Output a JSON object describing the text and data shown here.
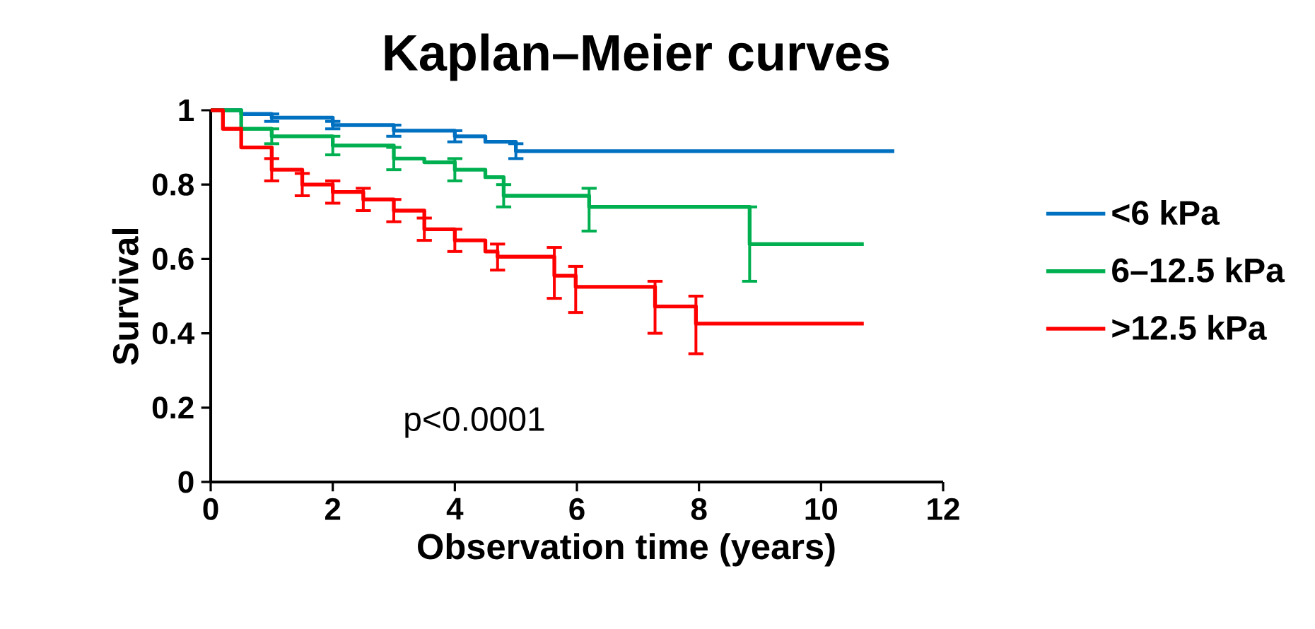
{
  "chart_data": {
    "type": "step",
    "title": "Kaplan–Meier curves",
    "xlabel": "Observation time (years)",
    "ylabel": "Survival",
    "xlim": [
      0,
      12
    ],
    "ylim": [
      0,
      1
    ],
    "xticks": [
      0,
      2,
      4,
      6,
      8,
      10,
      12
    ],
    "yticks": [
      0,
      0.2,
      0.4,
      0.6,
      0.8,
      1
    ],
    "legend": "right",
    "grid": false,
    "marker": "none",
    "line_style": "solid",
    "annotations": [
      "p<0.0001"
    ],
    "series": [
      {
        "name": "<6 kPa",
        "color": "#0070c0",
        "x": [
          0,
          0.5,
          1,
          2,
          3,
          4,
          4.5,
          5,
          11.2
        ],
        "values": [
          1,
          0.99,
          0.98,
          0.96,
          0.945,
          0.93,
          0.915,
          0.89,
          0.89
        ],
        "errors": [
          null,
          null,
          [
            0.97,
            0.99
          ],
          [
            0.95,
            0.97
          ],
          [
            0.93,
            0.96
          ],
          [
            0.915,
            0.945
          ],
          null,
          [
            0.87,
            0.91
          ],
          null
        ]
      },
      {
        "name": "6–12.5 kPa",
        "color": "#00b050",
        "x": [
          0,
          0.5,
          1,
          2,
          3,
          3.5,
          4,
          4.5,
          4.8,
          6.2,
          8.83,
          10.7
        ],
        "values": [
          1,
          0.95,
          0.93,
          0.905,
          0.87,
          0.86,
          0.84,
          0.82,
          0.77,
          0.74,
          0.64,
          0.64
        ],
        "errors": [
          null,
          null,
          [
            0.91,
            0.95
          ],
          [
            0.88,
            0.93
          ],
          [
            0.84,
            0.9
          ],
          null,
          [
            0.81,
            0.87
          ],
          null,
          [
            0.74,
            0.8
          ],
          [
            0.675,
            0.79
          ],
          [
            0.54,
            0.74
          ],
          null
        ]
      },
      {
        "name": ">12.5 kPa",
        "color": "#ff0000",
        "x": [
          0,
          0.2,
          0.5,
          1,
          1.5,
          2,
          2.5,
          3,
          3.5,
          4,
          4.5,
          4.7,
          5.63,
          5.98,
          7.28,
          7.95,
          10.7
        ],
        "values": [
          1,
          0.95,
          0.9,
          0.84,
          0.8,
          0.78,
          0.76,
          0.73,
          0.68,
          0.65,
          0.62,
          0.606,
          0.555,
          0.525,
          0.472,
          0.426,
          0.426
        ],
        "errors": [
          null,
          null,
          null,
          [
            0.81,
            0.87
          ],
          [
            0.77,
            0.83
          ],
          [
            0.75,
            0.81
          ],
          [
            0.73,
            0.79
          ],
          [
            0.7,
            0.76
          ],
          [
            0.65,
            0.71
          ],
          [
            0.62,
            0.68
          ],
          null,
          [
            0.57,
            0.64
          ],
          [
            0.494,
            0.631
          ],
          [
            0.456,
            0.58
          ],
          [
            0.4,
            0.54
          ],
          [
            0.345,
            0.5
          ],
          null
        ]
      }
    ]
  }
}
